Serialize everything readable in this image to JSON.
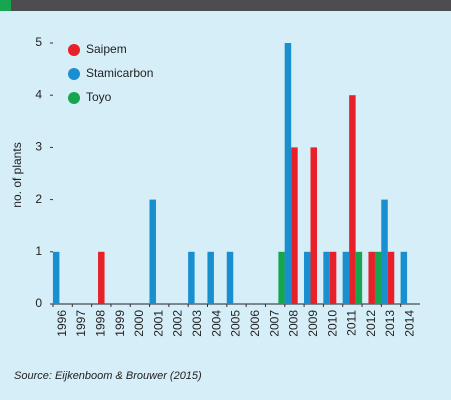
{
  "chart_data": {
    "type": "bar",
    "y_label": "no. of plants",
    "source": "Source: Eijkenboom & Brouwer (2015)",
    "categories": [
      "1996",
      "1997",
      "1998",
      "1999",
      "2000",
      "2001",
      "2002",
      "2003",
      "2004",
      "2005",
      "2006",
      "2007",
      "2008",
      "2009",
      "2010",
      "2011",
      "2012",
      "2013",
      "2014"
    ],
    "series": [
      {
        "name": "Saipem",
        "color": "#e8202a",
        "values": [
          0,
          0,
          1,
          0,
          0,
          0,
          0,
          0,
          0,
          0,
          0,
          0,
          3,
          3,
          1,
          4,
          1,
          1,
          0
        ]
      },
      {
        "name": "Stamicarbon",
        "color": "#1a8fcf",
        "values": [
          1,
          0,
          0,
          0,
          0,
          2,
          0,
          1,
          1,
          1,
          0,
          0,
          5,
          1,
          1,
          1,
          0,
          2,
          1
        ]
      },
      {
        "name": "Toyo",
        "color": "#17a64f",
        "values": [
          0,
          0,
          0,
          0,
          0,
          0,
          0,
          0,
          0,
          0,
          0,
          1,
          0,
          0,
          0,
          1,
          1,
          0,
          0
        ]
      }
    ],
    "ylim": [
      0,
      5
    ],
    "yticks": [
      0,
      1,
      2,
      3,
      4,
      5
    ],
    "legend": "top-left"
  }
}
